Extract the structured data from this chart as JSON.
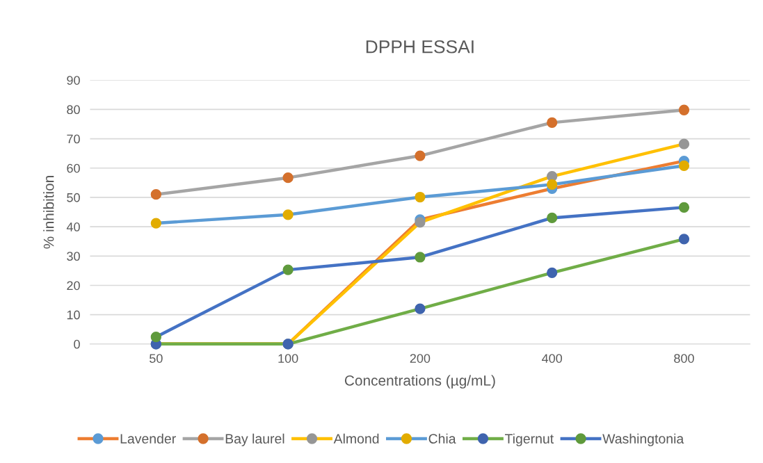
{
  "chart_data": {
    "type": "line",
    "title": "DPPH ESSAI",
    "xlabel": "Concentrations (µg/mL)",
    "ylabel": "% inhibition",
    "categories": [
      "50",
      "100",
      "200",
      "400",
      "800"
    ],
    "series": [
      {
        "name": "Lavender",
        "color": "#ed7d31",
        "colors": [
          "#5b9bd5",
          "#5b9bd5",
          "#5b9bd5",
          "#5b9bd5",
          "#5b9bd5"
        ],
        "values": [
          0,
          0,
          42.4,
          53,
          62.4
        ]
      },
      {
        "name": "Bay laurel",
        "color": "#a5a5a5",
        "colors": [
          "#d4702c",
          "#d4702c",
          "#d4702c",
          "#d4702c",
          "#d4702c"
        ],
        "values": [
          51,
          56.7,
          64.2,
          75.5,
          79.8
        ]
      },
      {
        "name": "Almond",
        "color": "#ffc000",
        "colors": [
          "#969696",
          "#969696",
          "#969696",
          "#969696",
          "#969696"
        ],
        "values": [
          0,
          0,
          41.5,
          57.2,
          68.2
        ]
      },
      {
        "name": "Chia",
        "color": "#5b9bd5",
        "colors": [
          "#e2ac00",
          "#e2ac00",
          "#e2ac00",
          "#e2ac00",
          "#e2ac00"
        ],
        "values": [
          41.2,
          44.1,
          50.1,
          54.4,
          60.8
        ]
      },
      {
        "name": "Tigernut",
        "color": "#70ad47",
        "colors": [
          "#3f64ae",
          "#3f64ae",
          "#3f64ae",
          "#3f64ae",
          "#3f64ae"
        ],
        "values": [
          0,
          0,
          12,
          24.3,
          35.8
        ]
      },
      {
        "name": "Washingtonia",
        "color": "#4472c4",
        "colors": [
          "#5f9a3c",
          "#5f9a3c",
          "#5f9a3c",
          "#5f9a3c",
          "#5f9a3c"
        ],
        "values": [
          2.4,
          25.3,
          29.6,
          43,
          46.6
        ]
      }
    ],
    "ylim": [
      0,
      90
    ],
    "yticks": [
      0,
      10,
      20,
      30,
      40,
      50,
      60,
      70,
      80,
      90
    ],
    "grid": "y",
    "legend": "bottom",
    "marker": "circle",
    "line_style": "solid"
  }
}
